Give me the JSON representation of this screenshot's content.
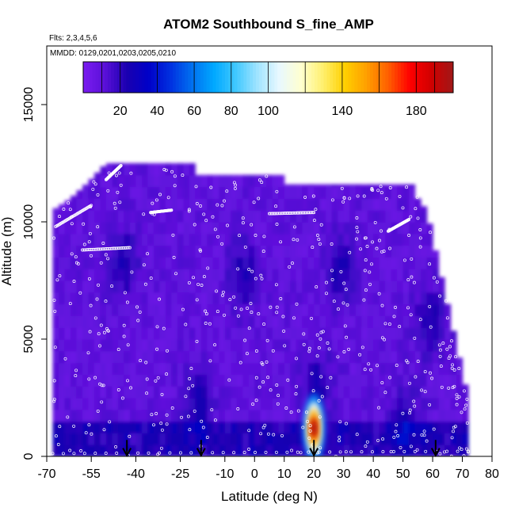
{
  "chart_data": {
    "type": "heatmap",
    "title": "ATOM2 Southbound S_fine_AMP",
    "subtitle_flights": "Flts: 2,3,4,5,6",
    "subtitle_dates": "MMDD: 0129,0201,0203,0205,0210",
    "xlabel": "Latitude (deg N)",
    "ylabel": "Altitude (m)",
    "xlim": [
      -70,
      80
    ],
    "ylim": [
      0,
      17500
    ],
    "x_ticks": [
      -70,
      -55,
      -40,
      -25,
      -10,
      0,
      10,
      20,
      30,
      40,
      50,
      60,
      70,
      80
    ],
    "x_tick_labels": [
      "-70",
      "-55",
      "-40",
      "-25",
      "-10",
      "0",
      "10",
      "20",
      "30",
      "40",
      "50",
      "60",
      "70",
      "80"
    ],
    "y_ticks": [
      0,
      5000,
      10000,
      15000
    ],
    "y_tick_labels": [
      "0",
      "5000",
      "10000",
      "15000"
    ],
    "colorbar": {
      "range": [
        0,
        200
      ],
      "tick_values": [
        20,
        40,
        60,
        80,
        100,
        140,
        180
      ],
      "tick_labels": [
        "20",
        "40",
        "60",
        "80",
        "100",
        "140",
        "180"
      ],
      "colors": [
        "#7a1cf0",
        "#5a10d8",
        "#1a00b0",
        "#0000c8",
        "#0030e0",
        "#0070f0",
        "#00a8ff",
        "#40c8ff",
        "#a0e4ff",
        "#e8f8ff",
        "#ffffd0",
        "#fff070",
        "#ffd000",
        "#ffa000",
        "#ff6000",
        "#ff0000",
        "#d00000",
        "#a01818"
      ]
    },
    "data_extent": {
      "lat_range": [
        -68,
        72
      ],
      "upper_profile": [
        {
          "lat": -68,
          "alt": 10500
        },
        {
          "lat": -62,
          "alt": 11000
        },
        {
          "lat": -56,
          "alt": 11700
        },
        {
          "lat": -50,
          "alt": 12500
        },
        {
          "lat": -20,
          "alt": 12500
        },
        {
          "lat": -19,
          "alt": 12000
        },
        {
          "lat": 10,
          "alt": 12000
        },
        {
          "lat": 11,
          "alt": 11600
        },
        {
          "lat": 53,
          "alt": 11600
        },
        {
          "lat": 55,
          "alt": 11000
        },
        {
          "lat": 58,
          "alt": 10500
        },
        {
          "lat": 72,
          "alt": 2500
        }
      ]
    },
    "hotspot": {
      "lat": 20,
      "alt": 1200,
      "value": 200
    },
    "arrow_markers_lat": [
      -43,
      -18,
      20,
      61
    ]
  }
}
